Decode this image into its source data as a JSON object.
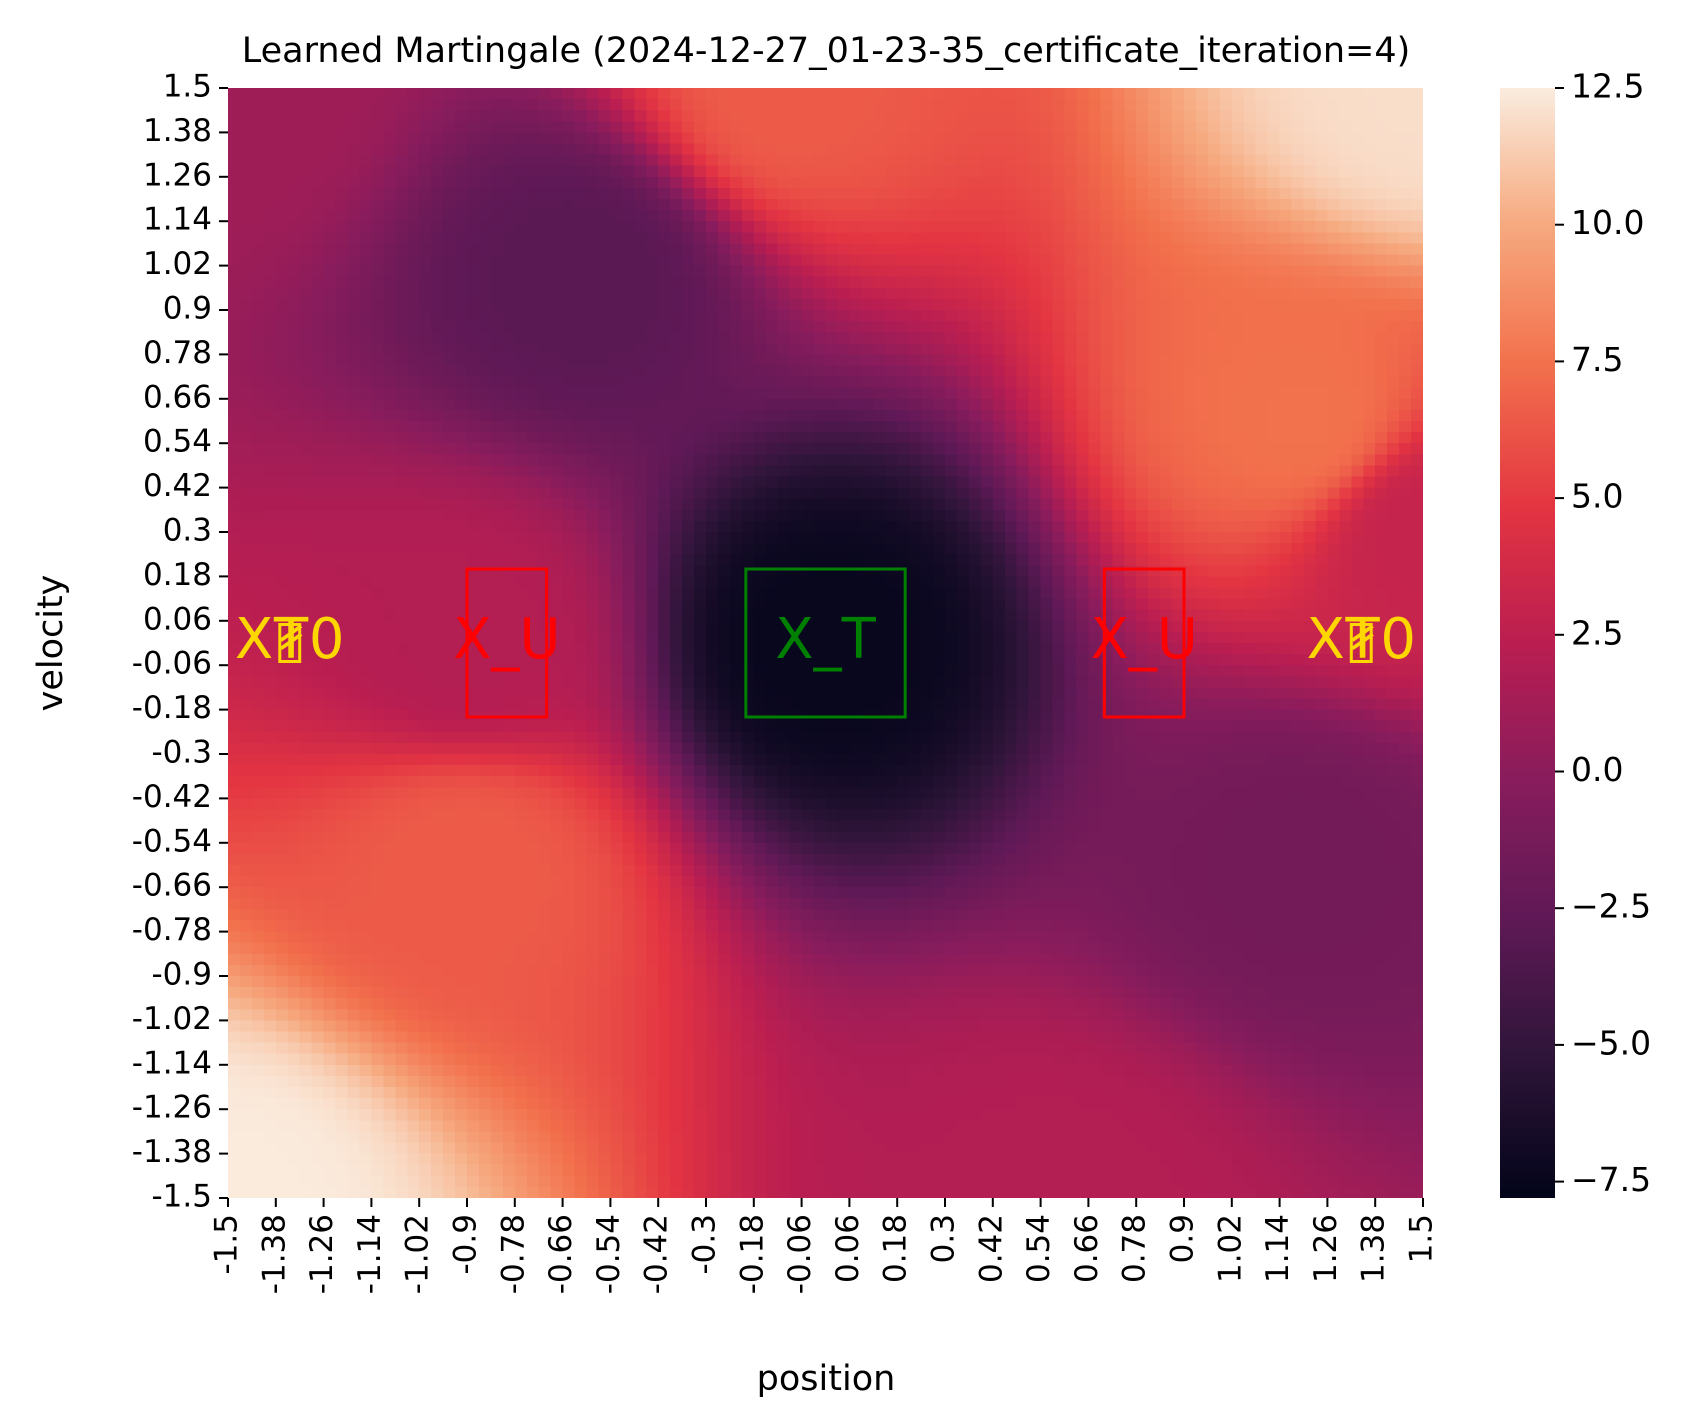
{
  "chart_data": {
    "type": "heatmap",
    "title": "Learned Martingale (2024-12-27_01-23-35_certificate_iteration=4)",
    "xlabel": "position",
    "ylabel": "velocity",
    "x_range": [
      -1.5,
      1.5
    ],
    "y_range": [
      -1.5,
      1.5
    ],
    "xtick_labels": [
      "-1.5",
      "-1.38",
      "-1.26",
      "-1.14",
      "-1.02",
      "-0.9",
      "-0.78",
      "-0.66",
      "-0.54",
      "-0.42",
      "-0.3",
      "-0.18",
      "-0.06",
      "0.06",
      "0.18",
      "0.3",
      "0.42",
      "0.54",
      "0.66",
      "0.78",
      "0.9",
      "1.02",
      "1.14",
      "1.26",
      "1.38",
      "1.5"
    ],
    "ytick_labels": [
      "1.5",
      "1.38",
      "1.26",
      "1.14",
      "1.02",
      "0.9",
      "0.78",
      "0.66",
      "0.54",
      "0.42",
      "0.3",
      "0.18",
      "0.06",
      "-0.06",
      "-0.18",
      "-0.3",
      "-0.42",
      "-0.54",
      "-0.66",
      "-0.78",
      "-0.9",
      "-1.02",
      "-1.14",
      "-1.26",
      "-1.38",
      "-1.5"
    ],
    "colorbar": {
      "range": [
        -7.8,
        12.5
      ],
      "ticks": [
        12.5,
        10.0,
        7.5,
        5.0,
        2.5,
        0.0,
        -2.5,
        -5.0,
        -7.5
      ],
      "tick_labels": [
        "12.5",
        "10.0",
        "7.5",
        "5.0",
        "2.5",
        "0.0",
        "−2.5",
        "−5.0",
        "−7.5"
      ],
      "colormap": "rocket"
    },
    "value_samples": [
      {
        "position": -1.5,
        "velocity": 1.5,
        "value": 1.0
      },
      {
        "position": -0.6,
        "velocity": 1.0,
        "value": -3.0
      },
      {
        "position": -0.1,
        "velocity": 1.5,
        "value": 6.5
      },
      {
        "position": 1.5,
        "velocity": 1.5,
        "value": 12.0
      },
      {
        "position": 1.2,
        "velocity": 0.6,
        "value": 7.5
      },
      {
        "position": 1.5,
        "velocity": 0.3,
        "value": 3.0
      },
      {
        "position": 0.0,
        "velocity": 0.0,
        "value": -7.5
      },
      {
        "position": 1.2,
        "velocity": -0.6,
        "value": -1.5
      },
      {
        "position": 0.6,
        "velocity": -1.5,
        "value": 2.0
      },
      {
        "position": -1.5,
        "velocity": -1.5,
        "value": 12.5
      },
      {
        "position": -0.9,
        "velocity": -0.6,
        "value": 6.5
      },
      {
        "position": -0.9,
        "velocity": 0.0,
        "value": 2.0
      }
    ],
    "regions": [
      {
        "label": "X_0",
        "display_label": "X₮0",
        "color": "#ffd700",
        "x": [
          -1.37,
          -1.32
        ],
        "y": [
          -0.05,
          0.05
        ]
      },
      {
        "label": "X_U",
        "color": "#ff0000",
        "x": [
          -0.9,
          -0.7
        ],
        "y": [
          -0.2,
          0.2
        ]
      },
      {
        "label": "X_T",
        "color": "#008000",
        "x": [
          -0.2,
          0.2
        ],
        "y": [
          -0.2,
          0.2
        ]
      },
      {
        "label": "X_U",
        "color": "#ff0000",
        "x": [
          0.7,
          0.9
        ],
        "y": [
          -0.2,
          0.2
        ]
      },
      {
        "label": "X_0",
        "display_label": "X₮0",
        "color": "#ffd700",
        "x": [
          1.32,
          1.37
        ],
        "y": [
          -0.05,
          0.05
        ]
      }
    ]
  }
}
